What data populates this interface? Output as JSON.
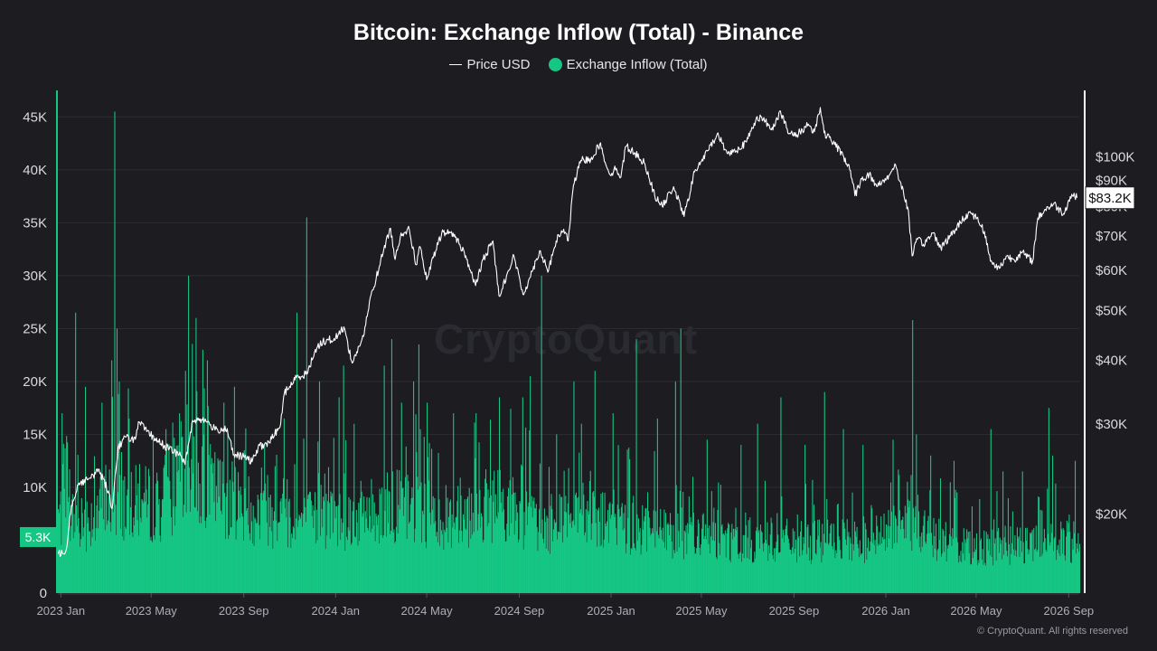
{
  "colors": {
    "background": "#1c1c21",
    "inflow": "#16c784",
    "price": "#ffffff",
    "grid": "#2c2c33",
    "axis_text": "#d9d9de"
  },
  "watermark": "CryptoQuant",
  "copyright": "© CryptoQuant. All rights reserved",
  "chart_data": {
    "type": "bar",
    "title": "Bitcoin: Exchange Inflow (Total) - Binance",
    "legend": {
      "position": "top-center",
      "items": [
        {
          "label": "Price USD",
          "marker": "line",
          "color": "#ffffff"
        },
        {
          "label": "Exchange Inflow (Total)",
          "marker": "dot",
          "color": "#16c784"
        }
      ]
    },
    "x_axis": {
      "type": "date",
      "range": [
        "2022-12-28",
        "2026-09-15"
      ],
      "ticks": [
        {
          "date": "2023-01-01",
          "label": "2023 Jan"
        },
        {
          "date": "2023-05-01",
          "label": "2023 May"
        },
        {
          "date": "2023-09-01",
          "label": "2023 Sep"
        },
        {
          "date": "2024-01-01",
          "label": "2024 Jan"
        },
        {
          "date": "2024-05-01",
          "label": "2024 May"
        },
        {
          "date": "2024-09-01",
          "label": "2024 Sep"
        },
        {
          "date": "2025-01-01",
          "label": "2025 Jan"
        },
        {
          "date": "2025-05-01",
          "label": "2025 May"
        },
        {
          "date": "2025-09-01",
          "label": "2025 Sep"
        },
        {
          "date": "2026-01-01",
          "label": "2026 Jan"
        },
        {
          "date": "2026-05-01",
          "label": "2026 May"
        },
        {
          "date": "2026-09-01",
          "label": "2026 Sep"
        }
      ]
    },
    "y_axis_left": {
      "name": "Exchange Inflow (Total)",
      "range": [
        0,
        47500
      ],
      "ticks": [
        {
          "value": 0,
          "label": "0"
        },
        {
          "value": 10000,
          "label": "10K"
        },
        {
          "value": 15000,
          "label": "15K"
        },
        {
          "value": 20000,
          "label": "20K"
        },
        {
          "value": 25000,
          "label": "25K"
        },
        {
          "value": 30000,
          "label": "30K"
        },
        {
          "value": 35000,
          "label": "35K"
        },
        {
          "value": 40000,
          "label": "40K"
        },
        {
          "value": 45000,
          "label": "45K"
        }
      ],
      "current_value": 5300,
      "current_label": "5.3K",
      "grid": true
    },
    "y_axis_right": {
      "name": "Price USD",
      "scale": "log",
      "range": [
        14000,
        135000
      ],
      "ticks": [
        {
          "value": 20000,
          "label": "$20K"
        },
        {
          "value": 30000,
          "label": "$30K"
        },
        {
          "value": 40000,
          "label": "$40K"
        },
        {
          "value": 50000,
          "label": "$50K"
        },
        {
          "value": 60000,
          "label": "$60K"
        },
        {
          "value": 70000,
          "label": "$70K"
        },
        {
          "value": 80000,
          "label": "$80K"
        },
        {
          "value": 90000,
          "label": "$90K"
        },
        {
          "value": 100000,
          "label": "$100K"
        }
      ],
      "current_value": 83200,
      "current_label": "$83.2K"
    },
    "series": [
      {
        "name": "Price USD",
        "type": "line",
        "points": [
          [
            "2022-12-28",
            16700
          ],
          [
            "2023-01-08",
            17000
          ],
          [
            "2023-01-15",
            20800
          ],
          [
            "2023-01-25",
            23000
          ],
          [
            "2023-02-10",
            23500
          ],
          [
            "2023-02-20",
            24500
          ],
          [
            "2023-03-05",
            22200
          ],
          [
            "2023-03-10",
            20500
          ],
          [
            "2023-03-18",
            27000
          ],
          [
            "2023-03-28",
            28300
          ],
          [
            "2023-04-10",
            28000
          ],
          [
            "2023-04-15",
            30300
          ],
          [
            "2023-04-25",
            29000
          ],
          [
            "2023-05-10",
            27800
          ],
          [
            "2023-05-25",
            26800
          ],
          [
            "2023-06-10",
            26000
          ],
          [
            "2023-06-15",
            25000
          ],
          [
            "2023-06-25",
            30500
          ],
          [
            "2023-07-05",
            30700
          ],
          [
            "2023-07-15",
            30300
          ],
          [
            "2023-07-25",
            29200
          ],
          [
            "2023-08-10",
            29400
          ],
          [
            "2023-08-18",
            26100
          ],
          [
            "2023-09-01",
            25900
          ],
          [
            "2023-09-12",
            25300
          ],
          [
            "2023-09-20",
            27000
          ],
          [
            "2023-10-05",
            27600
          ],
          [
            "2023-10-20",
            30000
          ],
          [
            "2023-10-25",
            34500
          ],
          [
            "2023-11-10",
            37000
          ],
          [
            "2023-11-25",
            37800
          ],
          [
            "2023-12-05",
            42000
          ],
          [
            "2023-12-15",
            43500
          ],
          [
            "2024-01-01",
            44200
          ],
          [
            "2024-01-12",
            46500
          ],
          [
            "2024-01-23",
            39500
          ],
          [
            "2024-02-08",
            45000
          ],
          [
            "2024-02-15",
            52000
          ],
          [
            "2024-02-28",
            61000
          ],
          [
            "2024-03-05",
            66000
          ],
          [
            "2024-03-14",
            72500
          ],
          [
            "2024-03-20",
            63000
          ],
          [
            "2024-03-28",
            71000
          ],
          [
            "2024-04-08",
            72000
          ],
          [
            "2024-04-17",
            61500
          ],
          [
            "2024-04-22",
            66800
          ],
          [
            "2024-05-01",
            57500
          ],
          [
            "2024-05-10",
            63500
          ],
          [
            "2024-05-21",
            71000
          ],
          [
            "2024-06-05",
            71000
          ],
          [
            "2024-06-20",
            65000
          ],
          [
            "2024-07-05",
            56000
          ],
          [
            "2024-07-15",
            63000
          ],
          [
            "2024-07-28",
            68500
          ],
          [
            "2024-08-05",
            53500
          ],
          [
            "2024-08-15",
            58500
          ],
          [
            "2024-08-25",
            64000
          ],
          [
            "2024-09-06",
            53800
          ],
          [
            "2024-09-15",
            58000
          ],
          [
            "2024-09-28",
            65500
          ],
          [
            "2024-10-10",
            60000
          ],
          [
            "2024-10-20",
            68500
          ],
          [
            "2024-10-30",
            72200
          ],
          [
            "2024-11-05",
            68500
          ],
          [
            "2024-11-12",
            88000
          ],
          [
            "2024-11-22",
            98500
          ],
          [
            "2024-12-05",
            99000
          ],
          [
            "2024-12-17",
            106000
          ],
          [
            "2024-12-30",
            92500
          ],
          [
            "2025-01-08",
            95000
          ],
          [
            "2025-01-13",
            91000
          ],
          [
            "2025-01-21",
            105000
          ],
          [
            "2025-02-01",
            102000
          ],
          [
            "2025-02-15",
            97000
          ],
          [
            "2025-02-28",
            84000
          ],
          [
            "2025-03-10",
            80000
          ],
          [
            "2025-03-25",
            87500
          ],
          [
            "2025-04-08",
            76500
          ],
          [
            "2025-04-22",
            93500
          ],
          [
            "2025-05-10",
            103000
          ],
          [
            "2025-05-22",
            111000
          ],
          [
            "2025-06-05",
            101500
          ],
          [
            "2025-06-20",
            104000
          ],
          [
            "2025-06-30",
            107000
          ],
          [
            "2025-07-14",
            120000
          ],
          [
            "2025-07-25",
            117500
          ],
          [
            "2025-08-02",
            113000
          ],
          [
            "2025-08-14",
            123000
          ],
          [
            "2025-08-25",
            111000
          ],
          [
            "2025-09-05",
            110500
          ],
          [
            "2025-09-20",
            116000
          ],
          [
            "2025-09-28",
            112000
          ],
          [
            "2025-10-06",
            125000
          ],
          [
            "2025-10-11",
            111500
          ],
          [
            "2025-10-20",
            108000
          ],
          [
            "2025-11-05",
            101000
          ],
          [
            "2025-11-15",
            94000
          ],
          [
            "2025-11-21",
            84000
          ],
          [
            "2025-11-30",
            90500
          ],
          [
            "2025-12-10",
            92500
          ],
          [
            "2025-12-20",
            87500
          ],
          [
            "2026-01-05",
            92000
          ],
          [
            "2026-01-14",
            96500
          ],
          [
            "2026-01-20",
            89500
          ],
          [
            "2026-01-31",
            78500
          ],
          [
            "2026-02-05",
            64000
          ],
          [
            "2026-02-12",
            69000
          ],
          [
            "2026-02-20",
            67500
          ],
          [
            "2026-03-05",
            71000
          ],
          [
            "2026-03-15",
            66500
          ],
          [
            "2026-03-28",
            70000
          ],
          [
            "2026-04-10",
            74500
          ],
          [
            "2026-04-22",
            78000
          ],
          [
            "2026-05-02",
            76000
          ],
          [
            "2026-05-12",
            71500
          ],
          [
            "2026-05-20",
            62500
          ],
          [
            "2026-06-01",
            60500
          ],
          [
            "2026-06-10",
            64000
          ],
          [
            "2026-06-20",
            63000
          ],
          [
            "2026-07-01",
            65000
          ],
          [
            "2026-07-15",
            62500
          ],
          [
            "2026-07-22",
            76000
          ],
          [
            "2026-08-01",
            79000
          ],
          [
            "2026-08-12",
            81000
          ],
          [
            "2026-08-25",
            77500
          ],
          [
            "2026-09-05",
            84500
          ],
          [
            "2026-09-12",
            83200
          ]
        ]
      },
      {
        "name": "Exchange Inflow (Total)",
        "type": "bar",
        "daily_count": 1358,
        "baseline_profile": [
          [
            "2022-12-28",
            7500
          ],
          [
            "2023-02-01",
            7000
          ],
          [
            "2023-03-10",
            9000
          ],
          [
            "2023-05-10",
            8500
          ],
          [
            "2023-06-25",
            11500
          ],
          [
            "2023-08-01",
            9500
          ],
          [
            "2023-09-15",
            8000
          ],
          [
            "2023-11-15",
            7000
          ],
          [
            "2024-01-15",
            7200
          ],
          [
            "2024-03-15",
            8500
          ],
          [
            "2024-06-01",
            7200
          ],
          [
            "2024-08-05",
            8800
          ],
          [
            "2024-10-01",
            6300
          ],
          [
            "2024-12-01",
            7000
          ],
          [
            "2025-03-01",
            6100
          ],
          [
            "2025-06-01",
            5200
          ],
          [
            "2025-09-01",
            5000
          ],
          [
            "2025-12-01",
            5000
          ],
          [
            "2026-02-05",
            6500
          ],
          [
            "2026-04-01",
            4600
          ],
          [
            "2026-07-01",
            4600
          ],
          [
            "2026-09-15",
            5000
          ]
        ],
        "spikes": [
          [
            "2023-01-02",
            17000
          ],
          [
            "2023-01-20",
            26500
          ],
          [
            "2023-02-02",
            19500
          ],
          [
            "2023-02-24",
            18000
          ],
          [
            "2023-03-09",
            22000
          ],
          [
            "2023-03-13",
            45500
          ],
          [
            "2023-03-16",
            25000
          ],
          [
            "2023-03-19",
            20000
          ],
          [
            "2023-04-01",
            16500
          ],
          [
            "2023-05-20",
            15500
          ],
          [
            "2023-06-07",
            17000
          ],
          [
            "2023-06-15",
            21000
          ],
          [
            "2023-06-19",
            30000
          ],
          [
            "2023-06-29",
            26000
          ],
          [
            "2023-07-08",
            23000
          ],
          [
            "2023-07-14",
            22000
          ],
          [
            "2023-08-05",
            18000
          ],
          [
            "2023-08-19",
            19500
          ],
          [
            "2023-09-01",
            13500
          ],
          [
            "2023-09-28",
            14000
          ],
          [
            "2023-10-24",
            16500
          ],
          [
            "2023-11-10",
            26500
          ],
          [
            "2023-11-23",
            35500
          ],
          [
            "2023-12-10",
            20000
          ],
          [
            "2024-01-05",
            18500
          ],
          [
            "2024-01-11",
            21500
          ],
          [
            "2024-01-25",
            16000
          ],
          [
            "2024-03-05",
            21500
          ],
          [
            "2024-03-15",
            24000
          ],
          [
            "2024-03-28",
            18000
          ],
          [
            "2024-04-13",
            20000
          ],
          [
            "2024-04-20",
            23500
          ],
          [
            "2024-05-01",
            18000
          ],
          [
            "2024-06-05",
            17000
          ],
          [
            "2024-07-05",
            17000
          ],
          [
            "2024-08-05",
            18500
          ],
          [
            "2024-09-05",
            18500
          ],
          [
            "2024-09-15",
            20500
          ],
          [
            "2024-09-30",
            30000
          ],
          [
            "2024-10-20",
            15000
          ],
          [
            "2024-11-12",
            20000
          ],
          [
            "2024-11-22",
            16000
          ],
          [
            "2024-12-10",
            21000
          ],
          [
            "2025-01-03",
            17000
          ],
          [
            "2025-02-03",
            24000
          ],
          [
            "2025-03-03",
            16500
          ],
          [
            "2025-03-27",
            20000
          ],
          [
            "2025-04-03",
            25000
          ],
          [
            "2025-05-08",
            14500
          ],
          [
            "2025-06-22",
            14000
          ],
          [
            "2025-07-14",
            16000
          ],
          [
            "2025-08-14",
            18500
          ],
          [
            "2025-09-15",
            14000
          ],
          [
            "2025-10-11",
            19000
          ],
          [
            "2025-11-05",
            15500
          ],
          [
            "2025-12-01",
            14000
          ],
          [
            "2026-01-10",
            14500
          ],
          [
            "2026-02-05",
            25800
          ],
          [
            "2026-02-10",
            15000
          ],
          [
            "2026-03-01",
            13000
          ],
          [
            "2026-04-01",
            12500
          ],
          [
            "2026-05-20",
            15500
          ],
          [
            "2026-06-05",
            11500
          ],
          [
            "2026-07-01",
            11500
          ],
          [
            "2026-08-05",
            17500
          ],
          [
            "2026-08-10",
            13000
          ],
          [
            "2026-09-09",
            12500
          ]
        ]
      }
    ]
  }
}
